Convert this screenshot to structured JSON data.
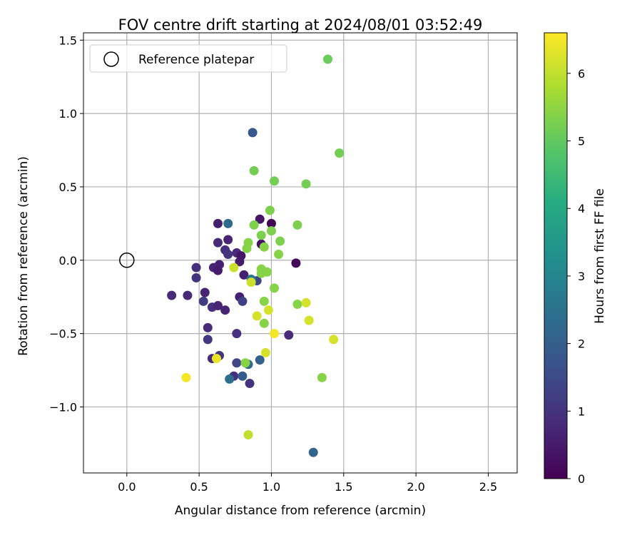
{
  "chart_data": {
    "type": "scatter",
    "title": "FOV centre drift starting at 2024/08/01 03:52:49",
    "xlabel": "Angular distance from reference (arcmin)",
    "ylabel": "Rotation from reference (arcmin)",
    "xlim": [
      -0.3,
      2.7
    ],
    "ylim": [
      -1.45,
      1.55
    ],
    "xticks": [
      0.0,
      0.5,
      1.0,
      1.5,
      2.0,
      2.5
    ],
    "xtick_labels": [
      "0.0",
      "0.5",
      "1.0",
      "1.5",
      "2.0",
      "2.5"
    ],
    "yticks": [
      -1.0,
      -0.5,
      0.0,
      0.5,
      1.0,
      1.5
    ],
    "ytick_labels": [
      "−1.0",
      "−0.5",
      "0.0",
      "0.5",
      "1.0",
      "1.5"
    ],
    "grid": true,
    "legend": {
      "placement": "top-left",
      "entries": [
        "Reference platepar"
      ]
    },
    "reference_point": {
      "x": 0.0,
      "y": 0.0
    },
    "colorbar": {
      "label": "Hours from first FF file",
      "colormap": "viridis",
      "range": [
        0,
        6.6
      ],
      "ticks": [
        0,
        1,
        2,
        3,
        4,
        5,
        6
      ],
      "tick_labels": [
        "0",
        "1",
        "2",
        "3",
        "4",
        "5",
        "6"
      ]
    },
    "points": [
      {
        "x": 0.87,
        "y": 0.87,
        "hours": 1.8
      },
      {
        "x": 0.7,
        "y": 0.25,
        "hours": 2.3
      },
      {
        "x": 0.63,
        "y": 0.25,
        "hours": 0.6
      },
      {
        "x": 0.7,
        "y": 0.14,
        "hours": 0.7
      },
      {
        "x": 0.63,
        "y": 0.12,
        "hours": 0.8
      },
      {
        "x": 0.92,
        "y": 0.28,
        "hours": 0.4
      },
      {
        "x": 1.0,
        "y": 0.25,
        "hours": 0.1
      },
      {
        "x": 0.68,
        "y": 0.07,
        "hours": 0.9
      },
      {
        "x": 0.7,
        "y": 0.04,
        "hours": 1.0
      },
      {
        "x": 0.76,
        "y": 0.05,
        "hours": 0.8
      },
      {
        "x": 0.79,
        "y": 0.03,
        "hours": 0.4
      },
      {
        "x": 0.78,
        "y": -0.01,
        "hours": 0.5
      },
      {
        "x": 0.64,
        "y": -0.03,
        "hours": 0.6
      },
      {
        "x": 0.6,
        "y": -0.05,
        "hours": 0.7
      },
      {
        "x": 0.63,
        "y": -0.07,
        "hours": 0.5
      },
      {
        "x": 0.48,
        "y": -0.05,
        "hours": 0.9
      },
      {
        "x": 0.48,
        "y": -0.12,
        "hours": 1.0
      },
      {
        "x": 0.81,
        "y": -0.1,
        "hours": 0.6
      },
      {
        "x": 0.9,
        "y": -0.14,
        "hours": 1.4
      },
      {
        "x": 0.93,
        "y": 0.11,
        "hours": 0.3
      },
      {
        "x": 1.17,
        "y": -0.02,
        "hours": 0.1
      },
      {
        "x": 0.31,
        "y": -0.24,
        "hours": 0.8
      },
      {
        "x": 0.42,
        "y": -0.24,
        "hours": 0.8
      },
      {
        "x": 0.54,
        "y": -0.22,
        "hours": 0.7
      },
      {
        "x": 0.53,
        "y": -0.28,
        "hours": 1.2
      },
      {
        "x": 0.59,
        "y": -0.32,
        "hours": 0.9
      },
      {
        "x": 0.63,
        "y": -0.31,
        "hours": 0.7
      },
      {
        "x": 0.68,
        "y": -0.34,
        "hours": 0.7
      },
      {
        "x": 0.78,
        "y": -0.25,
        "hours": 0.6
      },
      {
        "x": 0.8,
        "y": -0.28,
        "hours": 1.3
      },
      {
        "x": 0.56,
        "y": -0.46,
        "hours": 0.8
      },
      {
        "x": 0.56,
        "y": -0.54,
        "hours": 1.1
      },
      {
        "x": 0.76,
        "y": -0.5,
        "hours": 0.9
      },
      {
        "x": 1.12,
        "y": -0.51,
        "hours": 0.8
      },
      {
        "x": 0.59,
        "y": -0.67,
        "hours": 0.8
      },
      {
        "x": 0.64,
        "y": -0.65,
        "hours": 1.0
      },
      {
        "x": 0.76,
        "y": -0.7,
        "hours": 1.4
      },
      {
        "x": 0.74,
        "y": -0.79,
        "hours": 0.9
      },
      {
        "x": 0.8,
        "y": -0.79,
        "hours": 1.9
      },
      {
        "x": 0.71,
        "y": -0.81,
        "hours": 2.4
      },
      {
        "x": 0.84,
        "y": -0.71,
        "hours": 2.3
      },
      {
        "x": 0.92,
        "y": -0.68,
        "hours": 2.0
      },
      {
        "x": 0.85,
        "y": -0.84,
        "hours": 1.0
      },
      {
        "x": 1.29,
        "y": -1.31,
        "hours": 2.1
      },
      {
        "x": 0.86,
        "y": -0.13,
        "hours": 2.6
      },
      {
        "x": 1.39,
        "y": 1.37,
        "hours": 5.1
      },
      {
        "x": 1.47,
        "y": 0.73,
        "hours": 5.2
      },
      {
        "x": 0.88,
        "y": 0.61,
        "hours": 5.2
      },
      {
        "x": 1.02,
        "y": 0.54,
        "hours": 5.2
      },
      {
        "x": 1.24,
        "y": 0.52,
        "hours": 5.2
      },
      {
        "x": 0.99,
        "y": 0.34,
        "hours": 5.3
      },
      {
        "x": 0.88,
        "y": 0.24,
        "hours": 5.3
      },
      {
        "x": 1.18,
        "y": 0.24,
        "hours": 5.3
      },
      {
        "x": 1.0,
        "y": 0.2,
        "hours": 5.3
      },
      {
        "x": 0.93,
        "y": 0.17,
        "hours": 5.3
      },
      {
        "x": 1.06,
        "y": 0.13,
        "hours": 5.3
      },
      {
        "x": 0.84,
        "y": 0.12,
        "hours": 5.4
      },
      {
        "x": 0.95,
        "y": 0.09,
        "hours": 5.4
      },
      {
        "x": 0.83,
        "y": 0.08,
        "hours": 5.4
      },
      {
        "x": 1.05,
        "y": 0.04,
        "hours": 5.4
      },
      {
        "x": 0.93,
        "y": -0.06,
        "hours": 5.4
      },
      {
        "x": 0.97,
        "y": -0.08,
        "hours": 5.4
      },
      {
        "x": 0.93,
        "y": -0.09,
        "hours": 5.4
      },
      {
        "x": 1.02,
        "y": -0.19,
        "hours": 5.4
      },
      {
        "x": 0.95,
        "y": -0.28,
        "hours": 5.4
      },
      {
        "x": 1.18,
        "y": -0.3,
        "hours": 5.4
      },
      {
        "x": 0.95,
        "y": -0.43,
        "hours": 5.4
      },
      {
        "x": 0.82,
        "y": -0.7,
        "hours": 5.4
      },
      {
        "x": 1.35,
        "y": -0.8,
        "hours": 5.4
      },
      {
        "x": 0.74,
        "y": -0.05,
        "hours": 6.1
      },
      {
        "x": 0.86,
        "y": -0.15,
        "hours": 6.1
      },
      {
        "x": 0.9,
        "y": -0.38,
        "hours": 6.2
      },
      {
        "x": 0.98,
        "y": -0.34,
        "hours": 6.2
      },
      {
        "x": 1.24,
        "y": -0.29,
        "hours": 6.2
      },
      {
        "x": 1.26,
        "y": -0.41,
        "hours": 6.2
      },
      {
        "x": 1.02,
        "y": -0.5,
        "hours": 6.5
      },
      {
        "x": 1.43,
        "y": -0.54,
        "hours": 6.2
      },
      {
        "x": 0.96,
        "y": -0.63,
        "hours": 6.2
      },
      {
        "x": 0.62,
        "y": -0.67,
        "hours": 6.4
      },
      {
        "x": 0.41,
        "y": -0.8,
        "hours": 6.5
      },
      {
        "x": 0.84,
        "y": -1.19,
        "hours": 6.0
      }
    ]
  }
}
